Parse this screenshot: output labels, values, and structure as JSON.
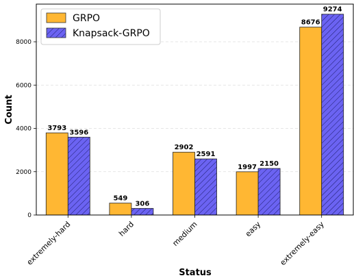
{
  "chart_data": {
    "type": "bar",
    "categories": [
      "extremely-hard",
      "hard",
      "medium",
      "easy",
      "extremely-easy"
    ],
    "series": [
      {
        "name": "GRPO",
        "values": [
          3793,
          549,
          2902,
          1997,
          8676
        ],
        "color": "#ffb733",
        "hatch": false
      },
      {
        "name": "Knapsack-GRPO",
        "values": [
          3596,
          306,
          2591,
          2150,
          9274
        ],
        "color": "#6b63f2",
        "hatch": true
      }
    ],
    "xlabel": "Status",
    "ylabel": "Count",
    "ylim": [
      0,
      9740
    ],
    "yticks": [
      0,
      2000,
      4000,
      6000,
      8000
    ],
    "grid": "y-dashed",
    "legend": "top-left"
  }
}
